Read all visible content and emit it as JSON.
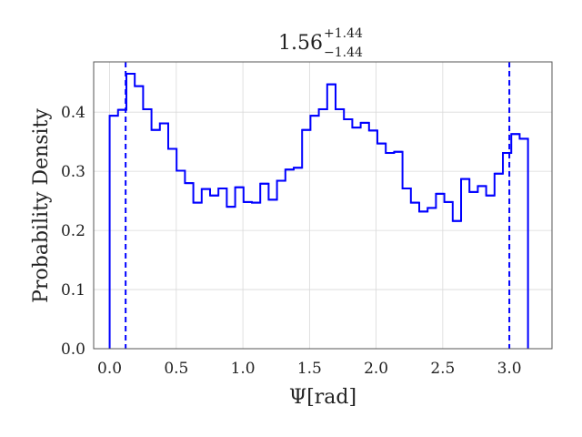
{
  "chart_data": {
    "type": "step-histogram",
    "title": {
      "main": "1.56",
      "sup": "+1.44",
      "sub": "−1.44"
    },
    "xlabel": "Ψ[rad]",
    "ylabel": "Probability Density",
    "xlim": [
      -0.12,
      3.32
    ],
    "ylim": [
      0.0,
      0.485
    ],
    "xticks": [
      {
        "value": 0.0,
        "label": "0.0"
      },
      {
        "value": 0.5,
        "label": "0.5"
      },
      {
        "value": 1.0,
        "label": "1.0"
      },
      {
        "value": 1.5,
        "label": "1.5"
      },
      {
        "value": 2.0,
        "label": "2.0"
      },
      {
        "value": 2.5,
        "label": "2.5"
      },
      {
        "value": 3.0,
        "label": "3.0"
      }
    ],
    "yticks": [
      {
        "value": 0.0,
        "label": "0.0"
      },
      {
        "value": 0.1,
        "label": "0.1"
      },
      {
        "value": 0.2,
        "label": "0.2"
      },
      {
        "value": 0.3,
        "label": "0.3"
      },
      {
        "value": 0.4,
        "label": "0.4"
      }
    ],
    "grid": true,
    "color": "#0000ff",
    "bin_start": 0.0,
    "bin_width": 0.0628,
    "densities": [
      0.394,
      0.404,
      0.465,
      0.444,
      0.405,
      0.37,
      0.381,
      0.338,
      0.301,
      0.28,
      0.247,
      0.27,
      0.259,
      0.271,
      0.24,
      0.273,
      0.248,
      0.247,
      0.279,
      0.252,
      0.284,
      0.303,
      0.306,
      0.37,
      0.394,
      0.405,
      0.447,
      0.405,
      0.388,
      0.374,
      0.382,
      0.369,
      0.347,
      0.331,
      0.333,
      0.271,
      0.247,
      0.232,
      0.238,
      0.262,
      0.248,
      0.216,
      0.287,
      0.265,
      0.275,
      0.259,
      0.296,
      0.331,
      0.363,
      0.355
    ],
    "vlines": [
      0.12,
      3.0
    ]
  }
}
